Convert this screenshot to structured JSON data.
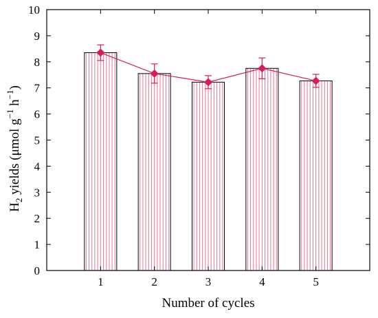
{
  "chart_data": {
    "type": "bar",
    "categories": [
      "1",
      "2",
      "3",
      "4",
      "5"
    ],
    "values": [
      8.35,
      7.55,
      7.22,
      7.75,
      7.27
    ],
    "error_plus_minus": [
      0.3,
      0.37,
      0.25,
      0.4,
      0.25
    ],
    "line_overlay": true,
    "xlabel": "Number of cycles",
    "ylabel": {
      "main": "H",
      "subscript": "2",
      "rest": " yields (μmol g",
      "exp1": "−1",
      "mid": " h",
      "exp2": "−1",
      "end": ")"
    },
    "ylim": [
      0,
      10
    ],
    "yticks": [
      0,
      1,
      2,
      3,
      4,
      5,
      6,
      7,
      8,
      9,
      10
    ],
    "x_range": [
      0,
      6
    ],
    "grid": false,
    "colors": {
      "bar_stripe": "#e8829a",
      "bar_outline": "#000000",
      "line_marker": "#d81b60"
    }
  }
}
